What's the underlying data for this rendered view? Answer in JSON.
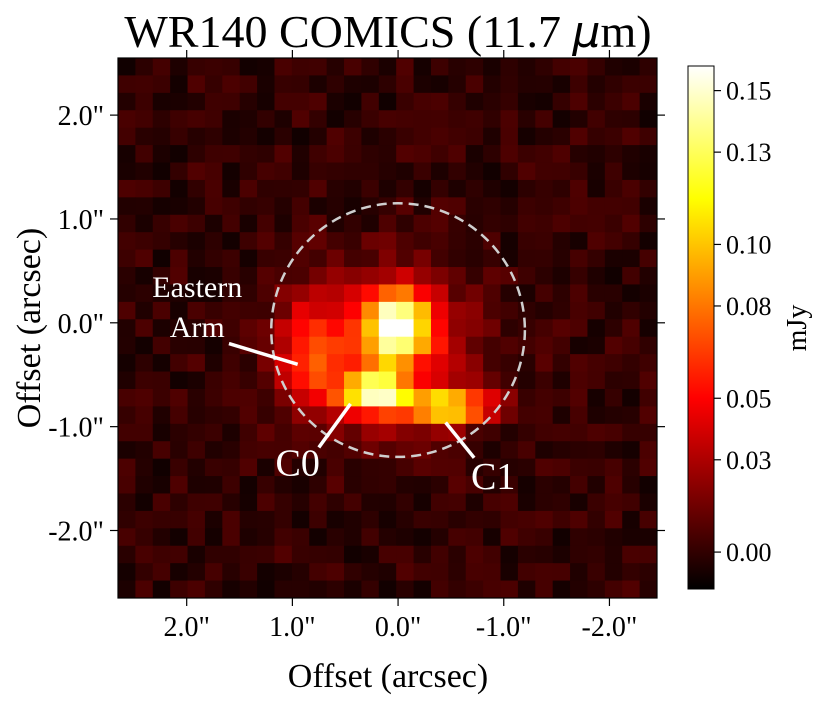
{
  "chart_data": {
    "type": "heatmap",
    "title": "WR140 COMICS (11.7 μm)",
    "title_prefix": "WR140 COMICS (11.7 ",
    "title_unit_symbol": "μ",
    "title_suffix": "m)",
    "xlabel": "Offset (arcsec)",
    "ylabel": "Offset (arcsec)",
    "xlim": [
      2.65,
      -2.45
    ],
    "ylim": [
      -2.65,
      2.55
    ],
    "x_ticks": [
      2.0,
      1.0,
      0.0,
      -1.0,
      -2.0
    ],
    "x_tick_labels": [
      "2.0\"",
      "1.0\"",
      "0.0\"",
      "-1.0\"",
      "-2.0\""
    ],
    "y_ticks": [
      2.0,
      1.0,
      0.0,
      -1.0,
      -2.0
    ],
    "y_tick_labels": [
      "2.0\"",
      "1.0\"",
      "0.0\"",
      "-1.0\"",
      "-2.0\""
    ],
    "colorbar": {
      "label": "mJy",
      "colormap": "hot",
      "range": [
        -0.012,
        0.158
      ],
      "ticks": [
        0.0,
        0.03,
        0.05,
        0.08,
        0.1,
        0.13,
        0.15
      ],
      "tick_labels": [
        "0.00",
        "0.03",
        "0.05",
        "0.08",
        "0.10",
        "0.13",
        "0.15"
      ]
    },
    "grid": false,
    "emission_components": [
      {
        "name": "core",
        "x": 0.0,
        "y": 0.0,
        "sigma_x": 0.22,
        "sigma_y": 0.22,
        "peak": 0.13
      },
      {
        "name": "stem",
        "x": 0.08,
        "y": -0.42,
        "sigma_x": 0.13,
        "sigma_y": 0.26,
        "peak": 0.025
      },
      {
        "name": "C0",
        "x": 0.25,
        "y": -0.66,
        "sigma_x": 0.2,
        "sigma_y": 0.12,
        "peak": 0.1
      },
      {
        "name": "C1",
        "x": -0.52,
        "y": -0.82,
        "sigma_x": 0.26,
        "sigma_y": 0.11,
        "peak": 0.08
      },
      {
        "name": "bar",
        "x": -0.12,
        "y": -0.78,
        "sigma_x": 0.42,
        "sigma_y": 0.12,
        "peak": 0.04
      },
      {
        "name": "eastern-arm",
        "x": 0.82,
        "y": -0.3,
        "sigma_x": 0.22,
        "sigma_y": 0.36,
        "peak": 0.05
      },
      {
        "name": "diffuse-halo",
        "x": 0.1,
        "y": -0.28,
        "sigma_x": 0.6,
        "sigma_y": 0.55,
        "peak": 0.045
      }
    ],
    "background_level": 0.0,
    "circle": {
      "center": [
        0.0,
        -0.07
      ],
      "radius": 1.2,
      "style": "dashed",
      "color": "#cccccc"
    },
    "annotations": [
      {
        "text_lines": [
          "Eastern",
          "Arm"
        ],
        "text_at": [
          1.9,
          0.25
        ],
        "line_from": [
          1.6,
          -0.2
        ],
        "line_to": [
          0.95,
          -0.4
        ]
      },
      {
        "text_lines": [
          "C0"
        ],
        "text_at": [
          0.95,
          -1.47
        ],
        "line_from": [
          0.75,
          -1.2
        ],
        "line_to": [
          0.45,
          -0.78
        ]
      },
      {
        "text_lines": [
          "C1"
        ],
        "text_at": [
          -0.9,
          -1.6
        ],
        "line_from": [
          -0.72,
          -1.3
        ],
        "line_to": [
          -0.45,
          -0.96
        ]
      }
    ]
  }
}
